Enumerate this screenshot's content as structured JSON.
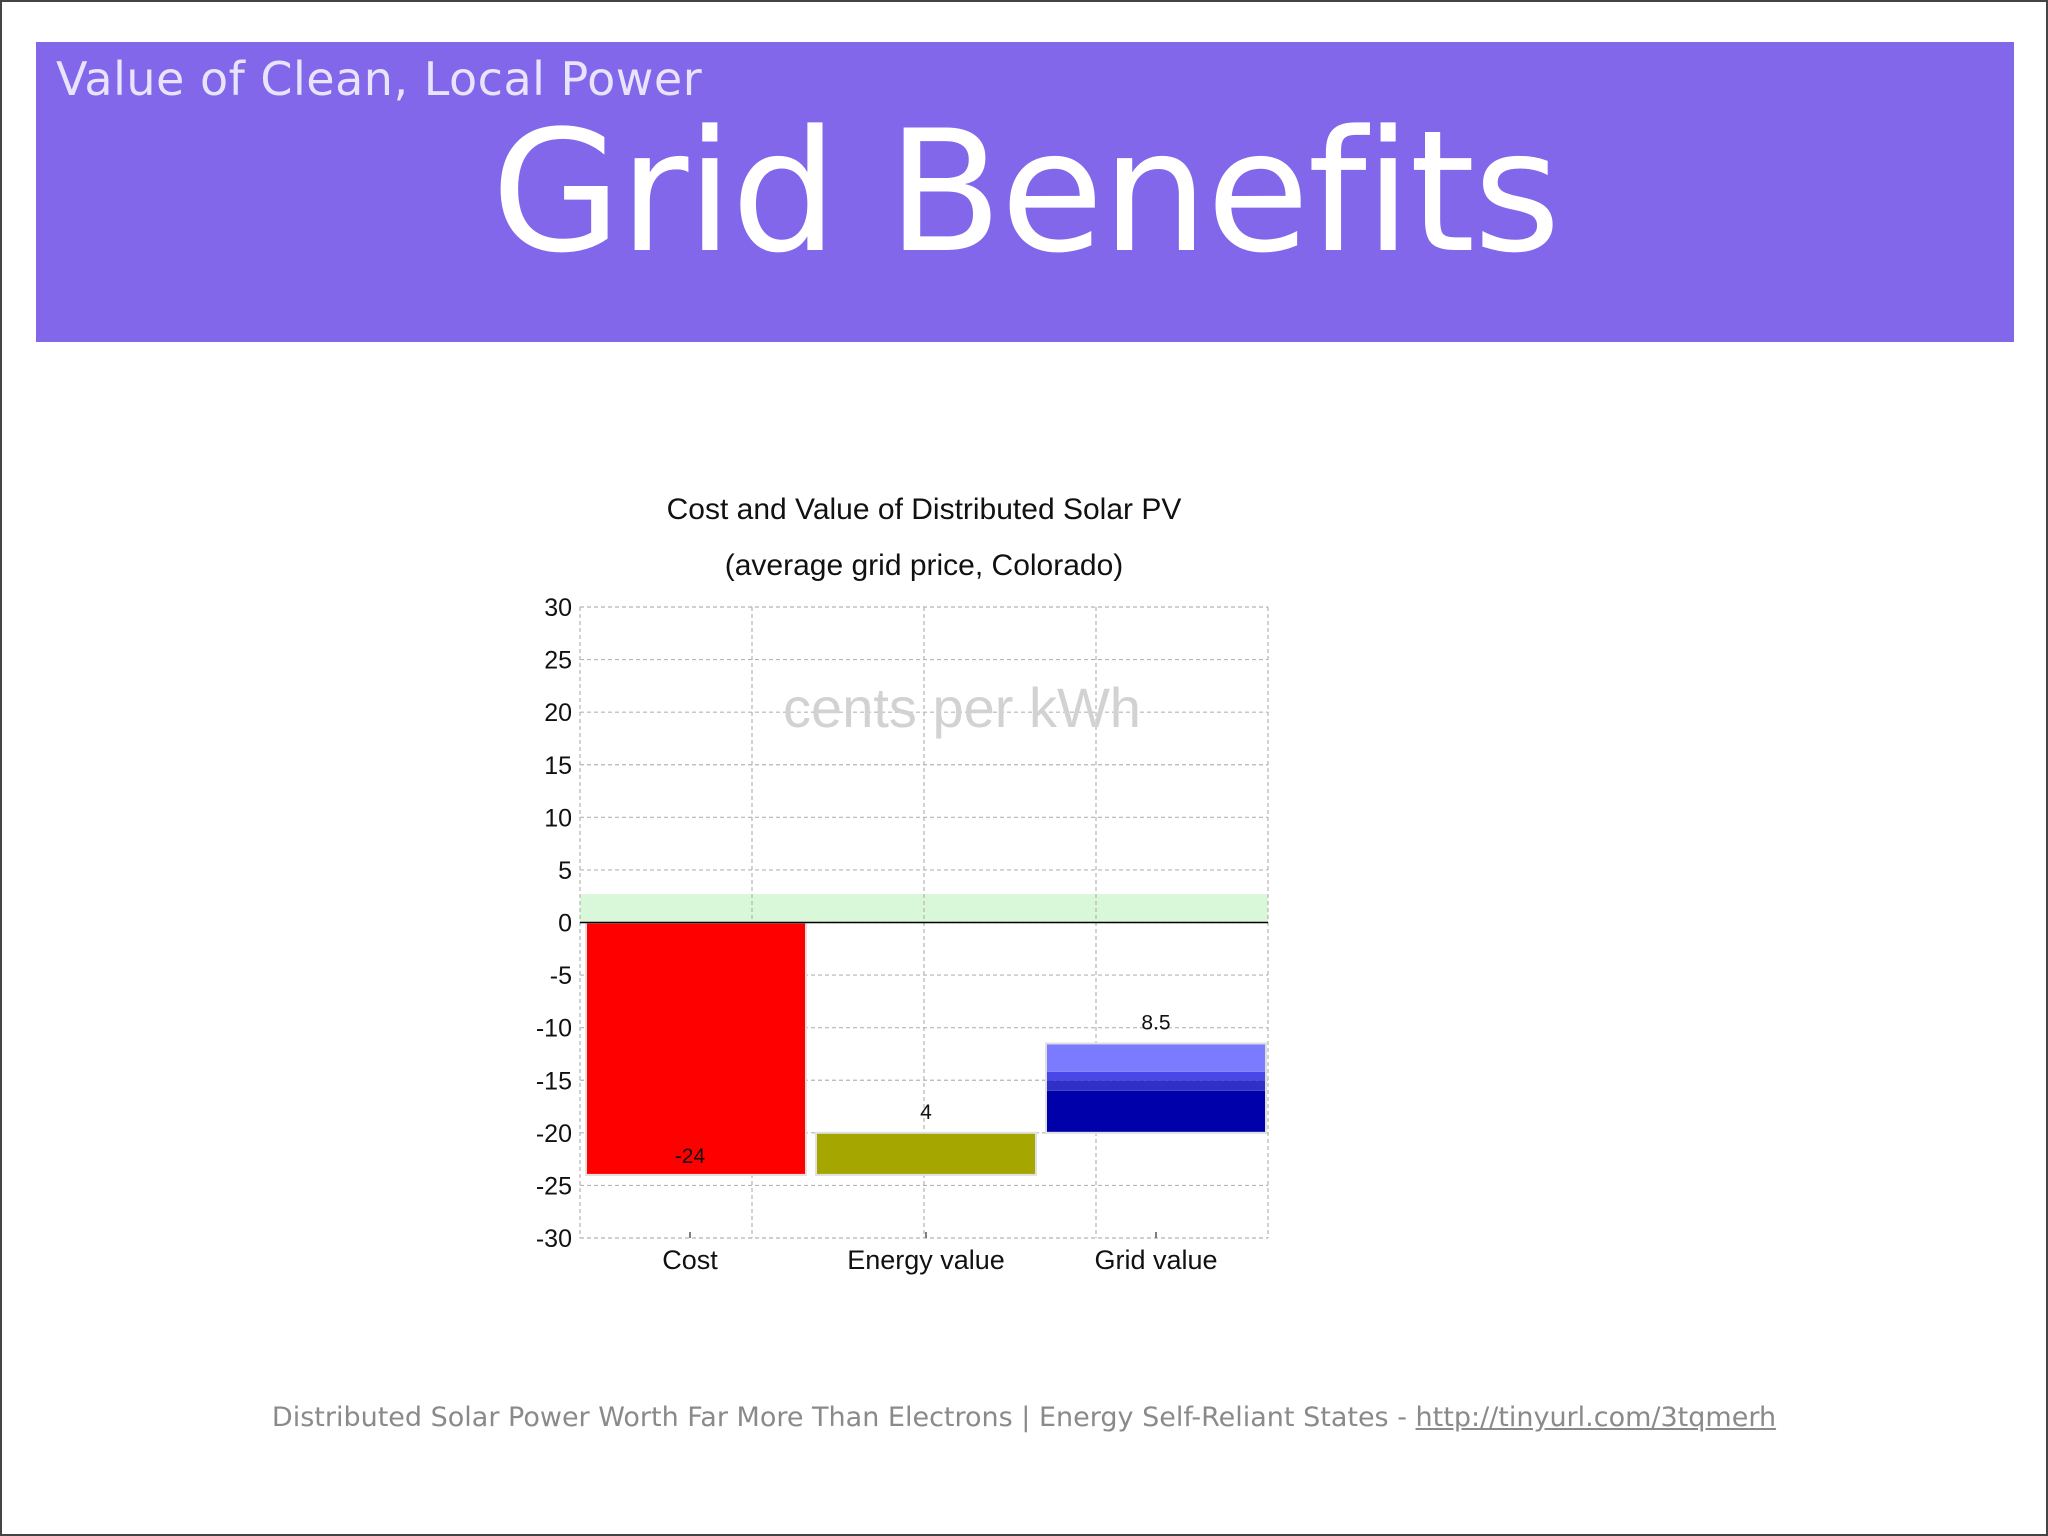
{
  "slide": {
    "kicker": "Value of Clean, Local Power",
    "title": "Grid Benefits",
    "footer_text": "Distributed Solar Power Worth Far More Than Electrons | Energy Self-Reliant States - ",
    "footer_link": "http://tinyurl.com/3tqmerh"
  },
  "colors": {
    "banner": "#8367eb",
    "cost": "#ff0000",
    "energy_value": "#a6a600",
    "grid_value_light": "#7b7bff",
    "grid_value_mid": "#3030c8",
    "grid_value_dark": "#0000aa",
    "zero_band": "#d9f7d9"
  },
  "chart_data": {
    "type": "bar",
    "title": "Cost and Value of Distributed Solar PV",
    "subtitle": "(average grid price, Colorado)",
    "watermark": "cents per kWh",
    "categories": [
      "Cost",
      "Energy value",
      "Grid value"
    ],
    "bars": [
      {
        "category": "Cost",
        "from": 0,
        "to": -24,
        "label": "-24"
      },
      {
        "category": "Energy value",
        "from": -24,
        "to": -20,
        "label": "4"
      },
      {
        "category": "Grid value",
        "from": -20,
        "to": -11.5,
        "label": "8.5",
        "segments": [
          {
            "from": -20,
            "to": -16
          },
          {
            "from": -16,
            "to": -15
          },
          {
            "from": -15,
            "to": -14.2
          },
          {
            "from": -14.2,
            "to": -11.5
          }
        ]
      }
    ],
    "yticks": [
      30,
      25,
      20,
      15,
      10,
      5,
      0,
      -5,
      -10,
      -15,
      -20,
      -25,
      -30
    ],
    "ylim": [
      -30,
      30
    ],
    "zero_band": [
      0,
      2.7
    ],
    "grid": true
  }
}
